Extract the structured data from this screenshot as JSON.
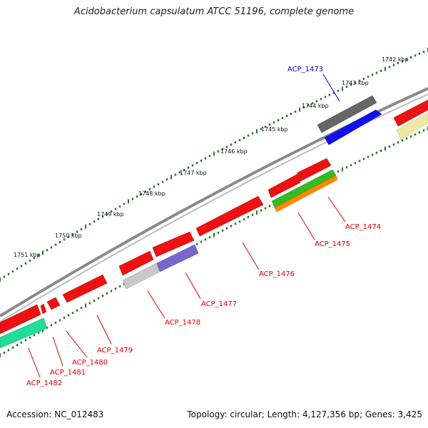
{
  "title": "Acidobacterium capsulatum ATCC 51196, complete genome",
  "footer": {
    "accession": "Accession: NC_012483",
    "topology": "Topology: circular; Length: 4,127,356 bp; Genes: 3,425"
  },
  "kbp_labels": [
    "1742 kbp",
    "1743 kbp",
    "1744 kbp",
    "1745 kbp",
    "1746 kbp",
    "1747 kbp",
    "1748 kbp",
    "1749 kbp",
    "1750 kbp",
    "1751 kbp"
  ],
  "genes": [
    {
      "id": "ACP_1473",
      "color": "#0000cc"
    },
    {
      "id": "ACP_1474",
      "color": "#dd0000"
    },
    {
      "id": "ACP_1475",
      "color": "#dd0000"
    },
    {
      "id": "ACP_1476",
      "color": "#dd0000"
    },
    {
      "id": "ACP_1477",
      "color": "#dd0000"
    },
    {
      "id": "ACP_1478",
      "color": "#dd0000"
    },
    {
      "id": "ACP_1479",
      "color": "#dd0000"
    },
    {
      "id": "ACP_1480",
      "color": "#dd0000"
    },
    {
      "id": "ACP_1481",
      "color": "#dd0000"
    },
    {
      "id": "ACP_1482",
      "color": "#dd0000"
    }
  ],
  "colors": {
    "backbone": "#8a8a8a",
    "cds_red": "#ee1111",
    "dark_gray": "#666666",
    "blue": "#1010ee",
    "green": "#33bb22",
    "orange": "#ff8800",
    "light_gray": "#c8c8c8",
    "purple": "#7766cc",
    "teal": "#22dd99",
    "pale_yellow": "#eee8a0",
    "dots": "#2a7a2a"
  }
}
